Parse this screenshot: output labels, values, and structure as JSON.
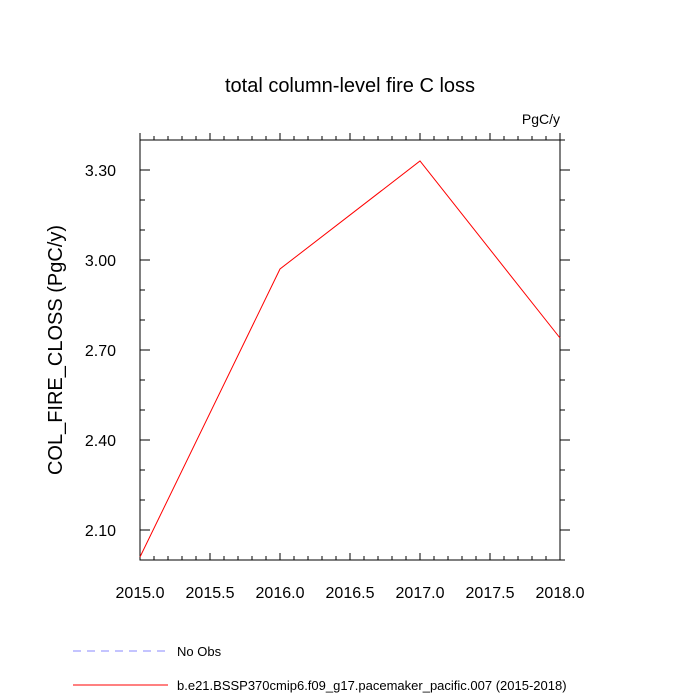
{
  "chart_data": {
    "type": "line",
    "title": "total column-level fire C loss",
    "units": "PgC/y",
    "xlabel": "",
    "ylabel": "COL_FIRE_CLOSS  (PgC/y)",
    "xlim": [
      2015.0,
      2018.0
    ],
    "ylim": [
      2.0,
      3.4
    ],
    "x_ticks": [
      "2015.0",
      "2015.5",
      "2016.0",
      "2016.5",
      "2017.0",
      "2017.5",
      "2018.0"
    ],
    "y_ticks": [
      "2.10",
      "2.40",
      "2.70",
      "3.00",
      "3.30"
    ],
    "grid": false,
    "legend_position": "bottom",
    "series": [
      {
        "name": "No Obs",
        "color": "#8888ff",
        "dash": "dashed",
        "x": [],
        "y": []
      },
      {
        "name": "b.e21.BSSP370cmip6.f09_g17.pacemaker_pacific.007 (2015-2018)",
        "color": "#ff0000",
        "dash": "solid",
        "x": [
          2015.0,
          2016.0,
          2017.0,
          2018.0
        ],
        "y": [
          2.01,
          2.97,
          3.33,
          2.74
        ]
      }
    ]
  }
}
